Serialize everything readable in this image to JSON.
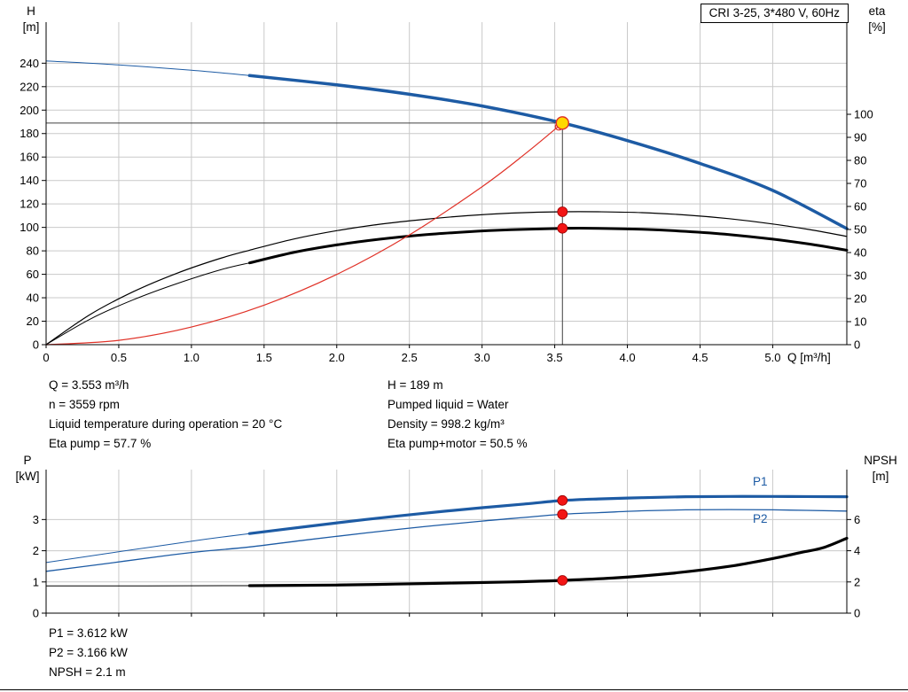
{
  "axes_labels": {
    "top_left_symbol": "H",
    "top_left_unit": "[m]",
    "top_right_symbol": "eta",
    "top_right_unit": "[%]",
    "bottom_left_symbol": "P",
    "bottom_left_unit": "[kW]",
    "bottom_right_symbol": "NPSH",
    "bottom_right_unit": "[m]"
  },
  "curve_labels": {
    "p1": "P1",
    "p2": "P2"
  },
  "results_top": {
    "left": [
      "Q = 3.553 m³/h",
      "n = 3559 rpm",
      "Liquid temperature during operation = 20 °C",
      "Eta pump = 57.7 %"
    ],
    "right": [
      "H = 189 m",
      "Pumped liquid = Water",
      "Density = 998.2 kg/m³",
      "Eta pump+motor = 50.5 %"
    ]
  },
  "results_bottom": [
    "P1 = 3.612 kW",
    "P2 = 3.166 kW",
    "NPSH = 2.1 m"
  ],
  "colors": {
    "curve_blue": "#1d5ba4",
    "curve_black": "#000000",
    "system_red": "#e03127",
    "marker_red": "#f21515",
    "marker_edge": "#990000",
    "duty_yellow": "#ffd800",
    "grid": "#c9c9c9",
    "crosshair": "#404040"
  },
  "chart_data": [
    {
      "name": "hq-eta-chart",
      "type": "line",
      "title": "CRI 3-25, 3*480 V, 60Hz",
      "xlabel": "Q [m³/h]",
      "ylabel_left": "H [m]",
      "ylabel_right": "eta [%]",
      "xlim": [
        0,
        5.51
      ],
      "ylim_left": [
        0,
        275
      ],
      "ylim_right": [
        0,
        140
      ],
      "grid": true,
      "show_x_labels": true,
      "xticks": [
        {
          "v": 0,
          "label": "0"
        },
        {
          "v": 0.5,
          "label": "0.5"
        },
        {
          "v": 1,
          "label": "1.0"
        },
        {
          "v": 1.5,
          "label": "1.5"
        },
        {
          "v": 2,
          "label": "2.0"
        },
        {
          "v": 2.5,
          "label": "2.5"
        },
        {
          "v": 3,
          "label": "3.0"
        },
        {
          "v": 3.5,
          "label": "3.5"
        },
        {
          "v": 4,
          "label": "4.0"
        },
        {
          "v": 4.5,
          "label": "4.5"
        },
        {
          "v": 5,
          "label": "5.0"
        }
      ],
      "yticks_left": [
        0,
        20,
        40,
        60,
        80,
        100,
        120,
        140,
        160,
        180,
        200,
        220,
        240
      ],
      "yticks_right": [
        0,
        10,
        20,
        30,
        40,
        50,
        60,
        70,
        80,
        90,
        100
      ],
      "series": [
        {
          "name": "pump-curve-hq",
          "axis": "left",
          "color": "#1d5ba4",
          "width": 3.5,
          "thin_width": 1,
          "split_at": 1.4,
          "points": [
            [
              0,
              242
            ],
            [
              0.5,
              238.5
            ],
            [
              1,
              234
            ],
            [
              1.4,
              229.5
            ],
            [
              2,
              221.5
            ],
            [
              2.5,
              213.5
            ],
            [
              3,
              203.5
            ],
            [
              3.553,
              189
            ],
            [
              4,
              174
            ],
            [
              4.5,
              154.5
            ],
            [
              5,
              131.5
            ],
            [
              5.51,
              99
            ]
          ]
        },
        {
          "name": "eta-pump-curve",
          "axis": "right",
          "color": "#000000",
          "width": 1.2,
          "points": [
            [
              0,
              0
            ],
            [
              0.3,
              13
            ],
            [
              0.6,
              23
            ],
            [
              0.9,
              31
            ],
            [
              1.2,
              37.5
            ],
            [
              1.4,
              41
            ],
            [
              1.7,
              45.8
            ],
            [
              2,
              49.5
            ],
            [
              2.3,
              52.3
            ],
            [
              2.6,
              54.4
            ],
            [
              2.9,
              56
            ],
            [
              3.2,
              57.1
            ],
            [
              3.553,
              57.7
            ],
            [
              3.8,
              57.7
            ],
            [
              4.1,
              57.3
            ],
            [
              4.4,
              56.3
            ],
            [
              4.7,
              54.7
            ],
            [
              5,
              52.4
            ],
            [
              5.25,
              50
            ],
            [
              5.51,
              47
            ]
          ]
        },
        {
          "name": "eta-pump-motor-curve",
          "axis": "right",
          "color": "#000000",
          "width": 3,
          "thin_width": 1,
          "split_at": 1.4,
          "points": [
            [
              0,
              0
            ],
            [
              0.3,
              11
            ],
            [
              0.6,
              19.5
            ],
            [
              0.9,
              26.5
            ],
            [
              1.2,
              32.5
            ],
            [
              1.4,
              35.5
            ],
            [
              1.7,
              40
            ],
            [
              2,
              43.3
            ],
            [
              2.3,
              45.8
            ],
            [
              2.6,
              47.7
            ],
            [
              2.9,
              49
            ],
            [
              3.2,
              49.9
            ],
            [
              3.553,
              50.5
            ],
            [
              3.8,
              50.5
            ],
            [
              4.1,
              50.1
            ],
            [
              4.4,
              49.2
            ],
            [
              4.7,
              47.8
            ],
            [
              5,
              45.8
            ],
            [
              5.25,
              43.7
            ],
            [
              5.51,
              41
            ]
          ]
        },
        {
          "name": "system-curve",
          "axis": "left",
          "color": "#e03127",
          "width": 1.2,
          "points": [
            [
              0,
              0
            ],
            [
              0.5,
              3.7
            ],
            [
              1,
              15
            ],
            [
              1.5,
              33.7
            ],
            [
              2,
              59.9
            ],
            [
              2.5,
              93.6
            ],
            [
              3,
              134.7
            ],
            [
              3.3,
              163
            ],
            [
              3.553,
              189
            ]
          ]
        }
      ],
      "duty_point": {
        "q": 3.553,
        "h": 189
      },
      "crosshair": {
        "q": 3.553,
        "h": 189
      },
      "markers": [
        {
          "q": 3.553,
          "v": 57.7,
          "axis": "right"
        },
        {
          "q": 3.553,
          "v": 50.5,
          "axis": "right"
        }
      ]
    },
    {
      "name": "power-npsh-chart",
      "type": "line",
      "title": "",
      "xlabel": "Q [m³/h]",
      "ylabel_left": "P [kW]",
      "ylabel_right": "NPSH [m]",
      "xlim": [
        0,
        5.51
      ],
      "ylim_left": [
        0,
        4.6
      ],
      "ylim_right": [
        0,
        9.2
      ],
      "grid": true,
      "show_x_labels": false,
      "xticks": [
        {
          "v": 0,
          "label": "0"
        },
        {
          "v": 0.5,
          "label": "0.5"
        },
        {
          "v": 1,
          "label": "1.0"
        },
        {
          "v": 1.5,
          "label": "1.5"
        },
        {
          "v": 2,
          "label": "2.0"
        },
        {
          "v": 2.5,
          "label": "2.5"
        },
        {
          "v": 3,
          "label": "3.0"
        },
        {
          "v": 3.5,
          "label": "3.5"
        },
        {
          "v": 4,
          "label": "4.0"
        },
        {
          "v": 4.5,
          "label": "4.5"
        },
        {
          "v": 5,
          "label": "5.0"
        }
      ],
      "yticks_left": [
        0,
        1,
        2,
        3
      ],
      "yticks_right": [
        0,
        2,
        4,
        6
      ],
      "series": [
        {
          "name": "p1-curve",
          "axis": "left",
          "color": "#1d5ba4",
          "width": 3.2,
          "thin_width": 1,
          "split_at": 1.4,
          "points": [
            [
              0,
              1.62
            ],
            [
              0.4,
              1.9
            ],
            [
              0.8,
              2.17
            ],
            [
              1.1,
              2.37
            ],
            [
              1.4,
              2.55
            ],
            [
              1.8,
              2.78
            ],
            [
              2.2,
              3.0
            ],
            [
              2.6,
              3.2
            ],
            [
              3,
              3.38
            ],
            [
              3.3,
              3.5
            ],
            [
              3.553,
              3.61
            ],
            [
              3.8,
              3.66
            ],
            [
              4.1,
              3.7
            ],
            [
              4.4,
              3.73
            ],
            [
              4.7,
              3.74
            ],
            [
              5,
              3.74
            ],
            [
              5.51,
              3.73
            ]
          ]
        },
        {
          "name": "p2-curve",
          "axis": "left",
          "color": "#1d5ba4",
          "width": 1.3,
          "points": [
            [
              0,
              1.34
            ],
            [
              0.4,
              1.58
            ],
            [
              0.8,
              1.83
            ],
            [
              1.1,
              1.99
            ],
            [
              1.4,
              2.12
            ],
            [
              1.8,
              2.35
            ],
            [
              2.2,
              2.57
            ],
            [
              2.6,
              2.77
            ],
            [
              3,
              2.95
            ],
            [
              3.3,
              3.07
            ],
            [
              3.553,
              3.17
            ],
            [
              3.8,
              3.22
            ],
            [
              4.1,
              3.28
            ],
            [
              4.4,
              3.31
            ],
            [
              4.7,
              3.32
            ],
            [
              5,
              3.31
            ],
            [
              5.51,
              3.27
            ]
          ]
        },
        {
          "name": "npsh-curve",
          "axis": "right",
          "color": "#000000",
          "width": 3.2,
          "thin_width": 1,
          "split_at": 1.4,
          "points": [
            [
              0,
              1.75
            ],
            [
              0.7,
              1.75
            ],
            [
              1.4,
              1.76
            ],
            [
              2,
              1.8
            ],
            [
              2.4,
              1.86
            ],
            [
              2.8,
              1.93
            ],
            [
              3.2,
              2.0
            ],
            [
              3.553,
              2.1
            ],
            [
              3.9,
              2.25
            ],
            [
              4.3,
              2.55
            ],
            [
              4.7,
              3.0
            ],
            [
              5,
              3.5
            ],
            [
              5.2,
              3.9
            ],
            [
              5.35,
              4.2
            ],
            [
              5.51,
              4.8
            ]
          ]
        }
      ],
      "markers": [
        {
          "q": 3.553,
          "v": 3.612,
          "axis": "left"
        },
        {
          "q": 3.553,
          "v": 3.166,
          "axis": "left"
        },
        {
          "q": 3.553,
          "v": 2.1,
          "axis": "right"
        }
      ]
    }
  ]
}
